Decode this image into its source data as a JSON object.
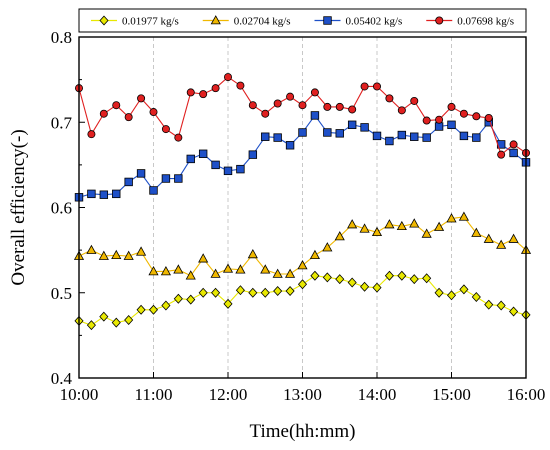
{
  "chart_data": {
    "type": "line",
    "title": "",
    "xlabel": "Time(hh:mm)",
    "ylabel": "Overall efficiency(-)",
    "xlim": [
      "10:00",
      "16:00"
    ],
    "ylim": [
      0.4,
      0.8
    ],
    "x_ticks": [
      "10:00",
      "11:00",
      "12:00",
      "13:00",
      "14:00",
      "15:00",
      "16:00"
    ],
    "y_ticks": [
      "0.4",
      "0.5",
      "0.6",
      "0.7",
      "0.8"
    ],
    "grid": "x-dashed",
    "legend_position": "top",
    "series": [
      {
        "name": "0.01977 kg/s",
        "color": "#e8e800",
        "marker": "diamond",
        "x": [
          "10:00",
          "10:10",
          "10:20",
          "10:30",
          "10:40",
          "10:50",
          "11:00",
          "11:10",
          "11:20",
          "11:30",
          "11:40",
          "11:50",
          "12:00",
          "12:10",
          "12:20",
          "12:30",
          "12:40",
          "12:50",
          "13:00",
          "13:10",
          "13:20",
          "13:30",
          "13:40",
          "13:50",
          "14:00",
          "14:10",
          "14:20",
          "14:30",
          "14:40",
          "14:50",
          "15:00",
          "15:10",
          "15:20",
          "15:30",
          "15:40",
          "15:50",
          "16:00"
        ],
        "values": [
          0.467,
          0.462,
          0.472,
          0.465,
          0.468,
          0.48,
          0.48,
          0.485,
          0.493,
          0.492,
          0.5,
          0.5,
          0.487,
          0.503,
          0.5,
          0.5,
          0.502,
          0.502,
          0.51,
          0.52,
          0.518,
          0.516,
          0.512,
          0.507,
          0.506,
          0.52,
          0.52,
          0.516,
          0.517,
          0.5,
          0.497,
          0.504,
          0.495,
          0.486,
          0.485,
          0.478,
          0.474
        ]
      },
      {
        "name": "0.02704 kg/s",
        "color": "#f0b800",
        "marker": "triangle",
        "x": [
          "10:00",
          "10:10",
          "10:20",
          "10:30",
          "10:40",
          "10:50",
          "11:00",
          "11:10",
          "11:20",
          "11:30",
          "11:40",
          "11:50",
          "12:00",
          "12:10",
          "12:20",
          "12:30",
          "12:40",
          "12:50",
          "13:00",
          "13:10",
          "13:20",
          "13:30",
          "13:40",
          "13:50",
          "14:00",
          "14:10",
          "14:20",
          "14:30",
          "14:40",
          "14:50",
          "15:00",
          "15:10",
          "15:20",
          "15:30",
          "15:40",
          "15:50",
          "16:00"
        ],
        "values": [
          0.543,
          0.55,
          0.543,
          0.544,
          0.543,
          0.548,
          0.525,
          0.525,
          0.527,
          0.52,
          0.54,
          0.522,
          0.528,
          0.527,
          0.545,
          0.527,
          0.522,
          0.522,
          0.532,
          0.544,
          0.553,
          0.566,
          0.58,
          0.575,
          0.571,
          0.58,
          0.578,
          0.581,
          0.569,
          0.577,
          0.587,
          0.589,
          0.57,
          0.563,
          0.556,
          0.563,
          0.55
        ]
      },
      {
        "name": "0.05402 kg/s",
        "color": "#1e50c8",
        "marker": "square",
        "x": [
          "10:00",
          "10:10",
          "10:20",
          "10:30",
          "10:40",
          "10:50",
          "11:00",
          "11:10",
          "11:20",
          "11:30",
          "11:40",
          "11:50",
          "12:00",
          "12:10",
          "12:20",
          "12:30",
          "12:40",
          "12:50",
          "13:00",
          "13:10",
          "13:20",
          "13:30",
          "13:40",
          "13:50",
          "14:00",
          "14:10",
          "14:20",
          "14:30",
          "14:40",
          "14:50",
          "15:00",
          "15:10",
          "15:20",
          "15:30",
          "15:40",
          "15:50",
          "16:00"
        ],
        "values": [
          0.612,
          0.616,
          0.615,
          0.616,
          0.63,
          0.64,
          0.62,
          0.634,
          0.634,
          0.657,
          0.663,
          0.65,
          0.643,
          0.645,
          0.662,
          0.683,
          0.682,
          0.673,
          0.688,
          0.708,
          0.688,
          0.687,
          0.697,
          0.694,
          0.684,
          0.678,
          0.685,
          0.683,
          0.682,
          0.695,
          0.697,
          0.684,
          0.682,
          0.7,
          0.674,
          0.664,
          0.653
        ]
      },
      {
        "name": "0.07698 kg/s",
        "color": "#e02020",
        "marker": "circle",
        "x": [
          "10:00",
          "10:10",
          "10:20",
          "10:30",
          "10:40",
          "10:50",
          "11:00",
          "11:10",
          "11:20",
          "11:30",
          "11:40",
          "11:50",
          "12:00",
          "12:10",
          "12:20",
          "12:30",
          "12:40",
          "12:50",
          "13:00",
          "13:10",
          "13:20",
          "13:30",
          "13:40",
          "13:50",
          "14:00",
          "14:10",
          "14:20",
          "14:30",
          "14:40",
          "14:50",
          "15:00",
          "15:10",
          "15:20",
          "15:30",
          "15:40",
          "15:50",
          "16:00"
        ],
        "values": [
          0.74,
          0.686,
          0.71,
          0.72,
          0.706,
          0.728,
          0.712,
          0.692,
          0.682,
          0.735,
          0.733,
          0.74,
          0.753,
          0.743,
          0.72,
          0.71,
          0.722,
          0.73,
          0.72,
          0.735,
          0.718,
          0.718,
          0.715,
          0.742,
          0.742,
          0.728,
          0.714,
          0.725,
          0.702,
          0.703,
          0.718,
          0.71,
          0.707,
          0.705,
          0.662,
          0.674,
          0.664
        ]
      }
    ]
  }
}
